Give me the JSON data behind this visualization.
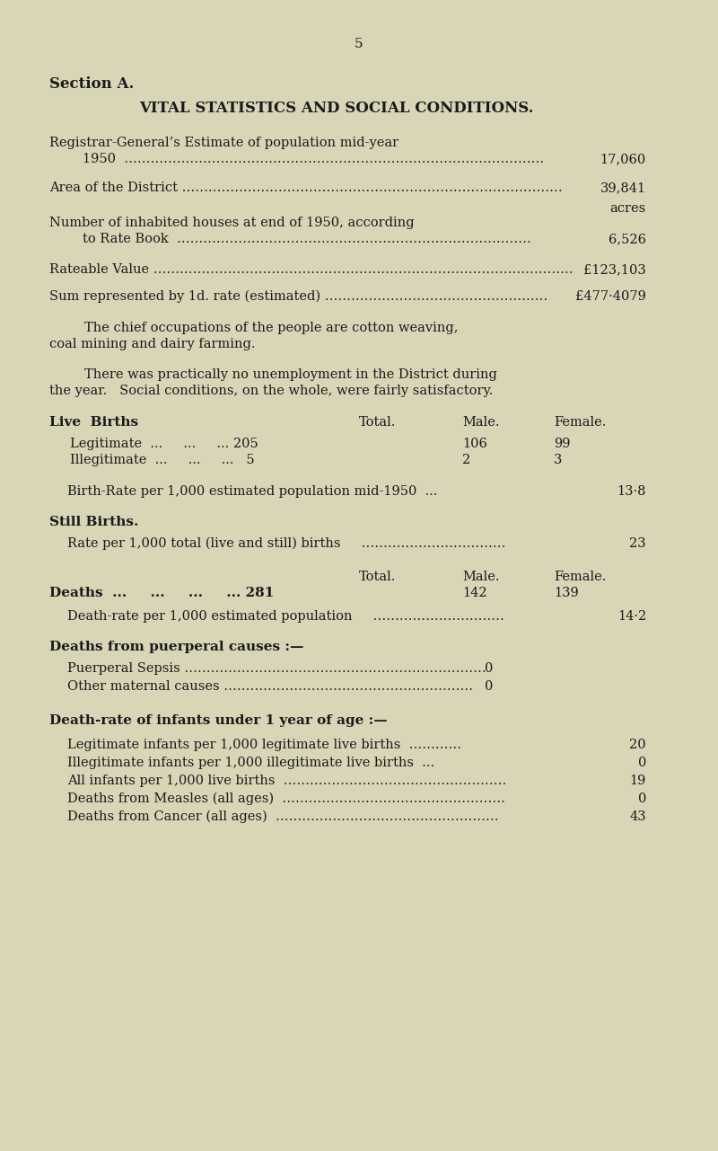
{
  "bg_color": "#d9d6b8",
  "text_color": "#1a1a1a",
  "fig_width": 8.0,
  "fig_height": 12.81,
  "dpi": 100,
  "page_number": "5",
  "section_label": "Section A.",
  "title": "VITAL STATISTICS AND SOCIAL CONDITIONS."
}
